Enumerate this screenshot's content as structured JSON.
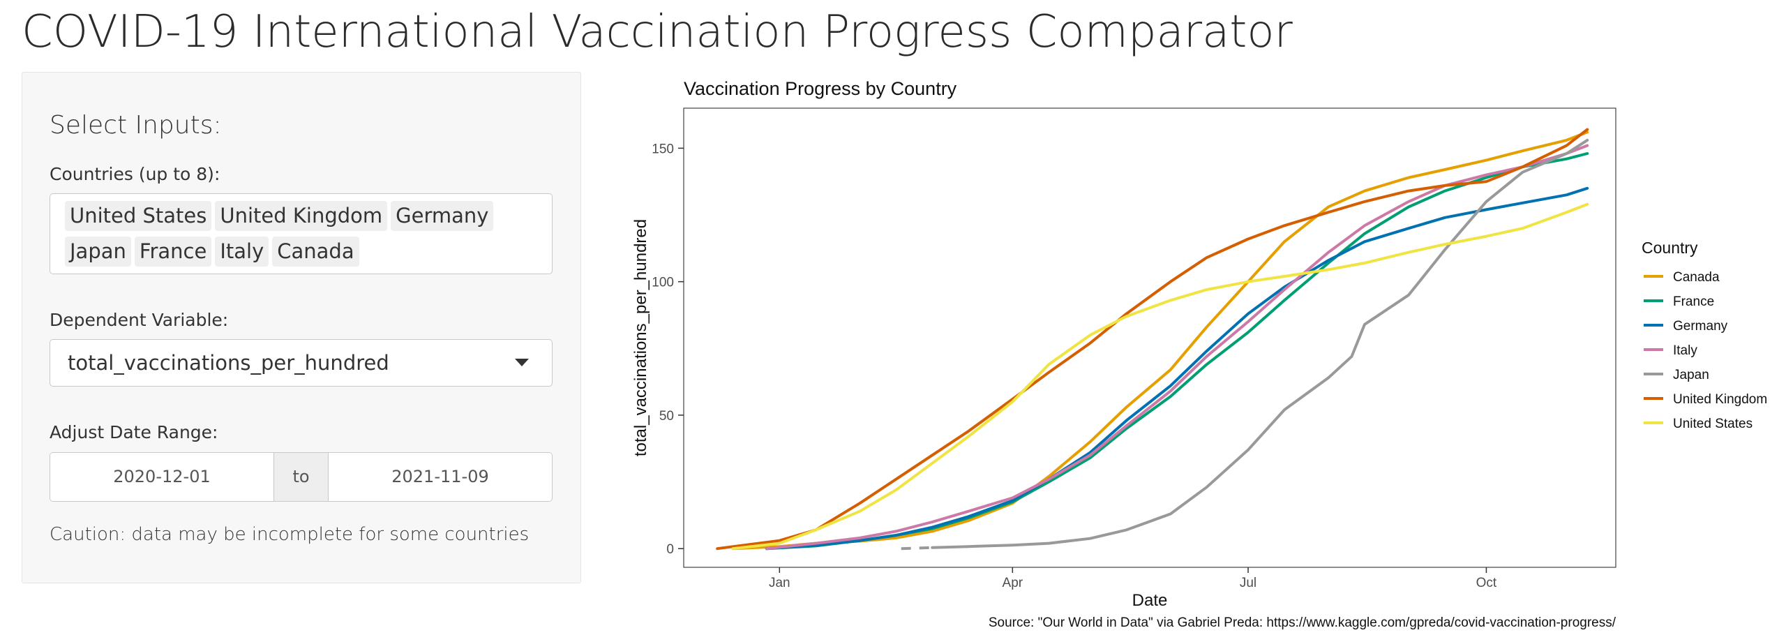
{
  "app": {
    "title": "COVID-19 International Vaccination Progress Comparator"
  },
  "sidebar": {
    "heading": "Select Inputs:",
    "countries_label": "Countries (up to 8):",
    "selected_countries": [
      "United States",
      "United Kingdom",
      "Germany",
      "Japan",
      "France",
      "Italy",
      "Canada"
    ],
    "dependent_label": "Dependent Variable:",
    "dependent_value": "total_vaccinations_per_hundred",
    "date_label": "Adjust Date Range:",
    "date_start": "2020-12-01",
    "date_separator": "to",
    "date_end": "2021-11-09",
    "caution": "Caution: data may be incomplete for some countries"
  },
  "chart_data": {
    "type": "line",
    "title": "Vaccination Progress by Country",
    "xlabel": "Date",
    "ylabel": "total_vaccinations_per_hundred",
    "caption": "Source: \"Our World in Data\" via Gabriel Preda: https://www.kaggle.com/gpreda/covid-vaccination-progress/",
    "legend_title": "Country",
    "legend_position": "right",
    "grid": false,
    "xlim": [
      "2020-11-25",
      "2021-11-20"
    ],
    "ylim": [
      -7,
      165
    ],
    "x_ticks": [
      {
        "date": "2021-01-01",
        "label": "Jan"
      },
      {
        "date": "2021-04-01",
        "label": "Apr"
      },
      {
        "date": "2021-07-01",
        "label": "Jul"
      },
      {
        "date": "2021-10-01",
        "label": "Oct"
      }
    ],
    "y_ticks": [
      0,
      50,
      100,
      150
    ],
    "series": [
      {
        "name": "Canada",
        "color": "#E69F00",
        "points": [
          [
            "2020-12-14",
            0
          ],
          [
            "2021-01-01",
            0.8
          ],
          [
            "2021-01-15",
            2
          ],
          [
            "2021-02-01",
            2.8
          ],
          [
            "2021-02-15",
            4
          ],
          [
            "2021-03-01",
            6.5
          ],
          [
            "2021-03-15",
            10.5
          ],
          [
            "2021-04-01",
            17
          ],
          [
            "2021-04-15",
            27
          ],
          [
            "2021-05-01",
            40
          ],
          [
            "2021-05-15",
            53
          ],
          [
            "2021-06-01",
            67
          ],
          [
            "2021-06-15",
            83
          ],
          [
            "2021-07-01",
            100
          ],
          [
            "2021-07-15",
            115
          ],
          [
            "2021-08-01",
            128
          ],
          [
            "2021-08-15",
            134
          ],
          [
            "2021-09-01",
            139
          ],
          [
            "2021-09-15",
            142
          ],
          [
            "2021-10-01",
            145.5
          ],
          [
            "2021-10-15",
            149
          ],
          [
            "2021-11-01",
            153
          ],
          [
            "2021-11-09",
            156
          ]
        ]
      },
      {
        "name": "France",
        "color": "#009E73",
        "points": [
          [
            "2020-12-27",
            0
          ],
          [
            "2021-01-15",
            1
          ],
          [
            "2021-02-01",
            3
          ],
          [
            "2021-02-15",
            5
          ],
          [
            "2021-03-01",
            7.5
          ],
          [
            "2021-03-15",
            11.5
          ],
          [
            "2021-04-01",
            17.5
          ],
          [
            "2021-04-15",
            25
          ],
          [
            "2021-05-01",
            34
          ],
          [
            "2021-05-15",
            45
          ],
          [
            "2021-06-01",
            57
          ],
          [
            "2021-06-15",
            69
          ],
          [
            "2021-07-01",
            81
          ],
          [
            "2021-07-15",
            93
          ],
          [
            "2021-08-01",
            107
          ],
          [
            "2021-08-15",
            118
          ],
          [
            "2021-09-01",
            128
          ],
          [
            "2021-09-15",
            134
          ],
          [
            "2021-10-01",
            139
          ],
          [
            "2021-10-15",
            143
          ],
          [
            "2021-11-01",
            146
          ],
          [
            "2021-11-09",
            148
          ]
        ]
      },
      {
        "name": "Germany",
        "color": "#0072B2",
        "points": [
          [
            "2020-12-27",
            0
          ],
          [
            "2021-01-15",
            1.2
          ],
          [
            "2021-02-01",
            3
          ],
          [
            "2021-02-15",
            5
          ],
          [
            "2021-03-01",
            8
          ],
          [
            "2021-03-15",
            12
          ],
          [
            "2021-04-01",
            18
          ],
          [
            "2021-04-15",
            26
          ],
          [
            "2021-05-01",
            36
          ],
          [
            "2021-05-15",
            48
          ],
          [
            "2021-06-01",
            61
          ],
          [
            "2021-06-15",
            74
          ],
          [
            "2021-07-01",
            88
          ],
          [
            "2021-07-15",
            98
          ],
          [
            "2021-08-01",
            108
          ],
          [
            "2021-08-15",
            115
          ],
          [
            "2021-09-01",
            120
          ],
          [
            "2021-09-15",
            124
          ],
          [
            "2021-10-01",
            127
          ],
          [
            "2021-10-15",
            129.5
          ],
          [
            "2021-11-01",
            132.5
          ],
          [
            "2021-11-09",
            135
          ]
        ]
      },
      {
        "name": "Italy",
        "color": "#CC79A7",
        "points": [
          [
            "2020-12-27",
            0
          ],
          [
            "2021-01-15",
            2
          ],
          [
            "2021-02-01",
            4
          ],
          [
            "2021-02-15",
            6.5
          ],
          [
            "2021-03-01",
            10
          ],
          [
            "2021-03-15",
            14
          ],
          [
            "2021-04-01",
            19
          ],
          [
            "2021-04-15",
            26
          ],
          [
            "2021-05-01",
            35
          ],
          [
            "2021-05-15",
            46
          ],
          [
            "2021-06-01",
            59
          ],
          [
            "2021-06-15",
            72
          ],
          [
            "2021-07-01",
            85
          ],
          [
            "2021-07-15",
            97
          ],
          [
            "2021-08-01",
            111
          ],
          [
            "2021-08-15",
            121
          ],
          [
            "2021-09-01",
            130
          ],
          [
            "2021-09-15",
            136
          ],
          [
            "2021-10-01",
            140
          ],
          [
            "2021-10-15",
            143
          ],
          [
            "2021-11-01",
            148
          ],
          [
            "2021-11-09",
            151
          ]
        ]
      },
      {
        "name": "Japan",
        "color": "#999999",
        "dash_before": "2021-03-01",
        "points": [
          [
            "2021-02-17",
            0
          ],
          [
            "2021-03-01",
            0.4
          ],
          [
            "2021-03-15",
            0.8
          ],
          [
            "2021-04-01",
            1.3
          ],
          [
            "2021-04-15",
            2
          ],
          [
            "2021-05-01",
            3.8
          ],
          [
            "2021-05-15",
            7
          ],
          [
            "2021-06-01",
            13
          ],
          [
            "2021-06-15",
            23
          ],
          [
            "2021-07-01",
            37
          ],
          [
            "2021-07-15",
            52
          ],
          [
            "2021-08-01",
            64
          ],
          [
            "2021-08-10",
            72
          ],
          [
            "2021-08-15",
            84
          ],
          [
            "2021-09-01",
            95
          ],
          [
            "2021-09-15",
            112
          ],
          [
            "2021-10-01",
            130
          ],
          [
            "2021-10-15",
            141
          ],
          [
            "2021-11-01",
            148
          ],
          [
            "2021-11-09",
            153
          ]
        ]
      },
      {
        "name": "United Kingdom",
        "color": "#D55E00",
        "points": [
          [
            "2020-12-08",
            0
          ],
          [
            "2021-01-01",
            3
          ],
          [
            "2021-01-15",
            7
          ],
          [
            "2021-02-01",
            17
          ],
          [
            "2021-02-15",
            26
          ],
          [
            "2021-03-01",
            35
          ],
          [
            "2021-03-15",
            44
          ],
          [
            "2021-04-01",
            56
          ],
          [
            "2021-04-15",
            66
          ],
          [
            "2021-05-01",
            77
          ],
          [
            "2021-05-15",
            88
          ],
          [
            "2021-06-01",
            100
          ],
          [
            "2021-06-15",
            109
          ],
          [
            "2021-07-01",
            116
          ],
          [
            "2021-07-15",
            121
          ],
          [
            "2021-08-01",
            126
          ],
          [
            "2021-08-15",
            130
          ],
          [
            "2021-09-01",
            134
          ],
          [
            "2021-09-15",
            136
          ],
          [
            "2021-10-01",
            137.5
          ],
          [
            "2021-10-15",
            143
          ],
          [
            "2021-11-01",
            151
          ],
          [
            "2021-11-09",
            157
          ]
        ]
      },
      {
        "name": "United States",
        "color": "#F0E442",
        "points": [
          [
            "2020-12-14",
            0
          ],
          [
            "2021-01-01",
            2
          ],
          [
            "2021-01-15",
            7
          ],
          [
            "2021-02-01",
            14
          ],
          [
            "2021-02-15",
            22
          ],
          [
            "2021-03-01",
            32
          ],
          [
            "2021-03-15",
            42
          ],
          [
            "2021-04-01",
            55
          ],
          [
            "2021-04-15",
            69
          ],
          [
            "2021-05-01",
            80
          ],
          [
            "2021-05-15",
            87
          ],
          [
            "2021-06-01",
            93
          ],
          [
            "2021-06-15",
            97
          ],
          [
            "2021-07-01",
            100
          ],
          [
            "2021-07-15",
            102
          ],
          [
            "2021-08-01",
            104.5
          ],
          [
            "2021-08-15",
            107
          ],
          [
            "2021-09-01",
            111
          ],
          [
            "2021-09-15",
            114
          ],
          [
            "2021-10-01",
            117
          ],
          [
            "2021-10-15",
            120
          ],
          [
            "2021-11-01",
            126
          ],
          [
            "2021-11-09",
            129
          ]
        ]
      }
    ]
  }
}
